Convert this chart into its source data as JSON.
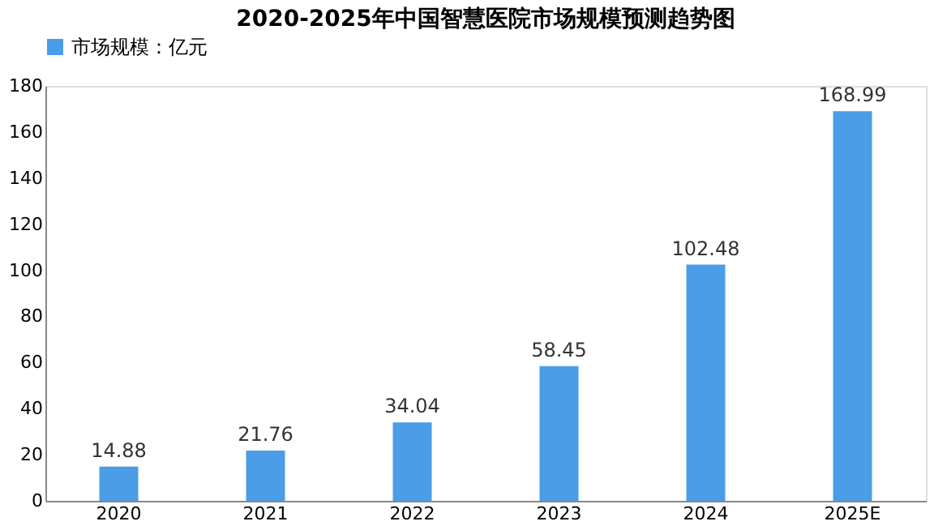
{
  "chart_data": {
    "type": "bar",
    "title": "2020-2025年中国智慧医院市场规模预测趋势图",
    "categories": [
      "2020",
      "2021",
      "2022",
      "2023",
      "2024",
      "2025E"
    ],
    "series": [
      {
        "name": "市场规模：亿元",
        "color": "#4a9de6",
        "values": [
          14.88,
          21.76,
          34.04,
          58.45,
          102.48,
          168.99
        ]
      }
    ],
    "ylim": [
      0,
      180
    ],
    "yticks": [
      0,
      20,
      40,
      60,
      80,
      100,
      120,
      140,
      160,
      180
    ],
    "data_labels": true,
    "legend": "top",
    "grid": false
  }
}
